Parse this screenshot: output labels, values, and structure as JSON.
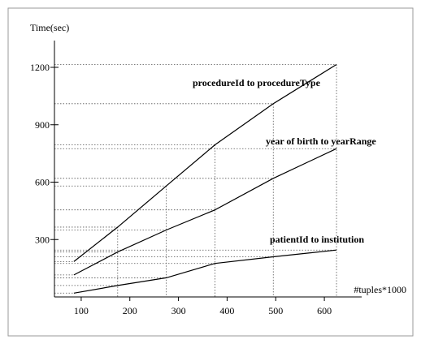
{
  "chart_data": {
    "type": "line",
    "xlabel": "#tuples*1000",
    "ylabel": "Time(sec)",
    "xticks": [
      100,
      200,
      300,
      400,
      500,
      600
    ],
    "yticks": [
      300,
      600,
      900,
      1200
    ],
    "xlim": [
      45,
      655
    ],
    "ylim": [
      0,
      1340
    ],
    "grid": "dotted guide lines from each data point to both axes",
    "x": [
      85,
      175,
      275,
      375,
      495,
      625
    ],
    "series": [
      {
        "name": "procedureId to procedureType",
        "values": [
          185,
          365,
          580,
          795,
          1010,
          1215
        ]
      },
      {
        "name": "year of birth to yearRange",
        "values": [
          115,
          235,
          350,
          455,
          620,
          775
        ]
      },
      {
        "name": "patientId to institution",
        "values": [
          20,
          60,
          100,
          175,
          210,
          245
        ]
      }
    ]
  }
}
